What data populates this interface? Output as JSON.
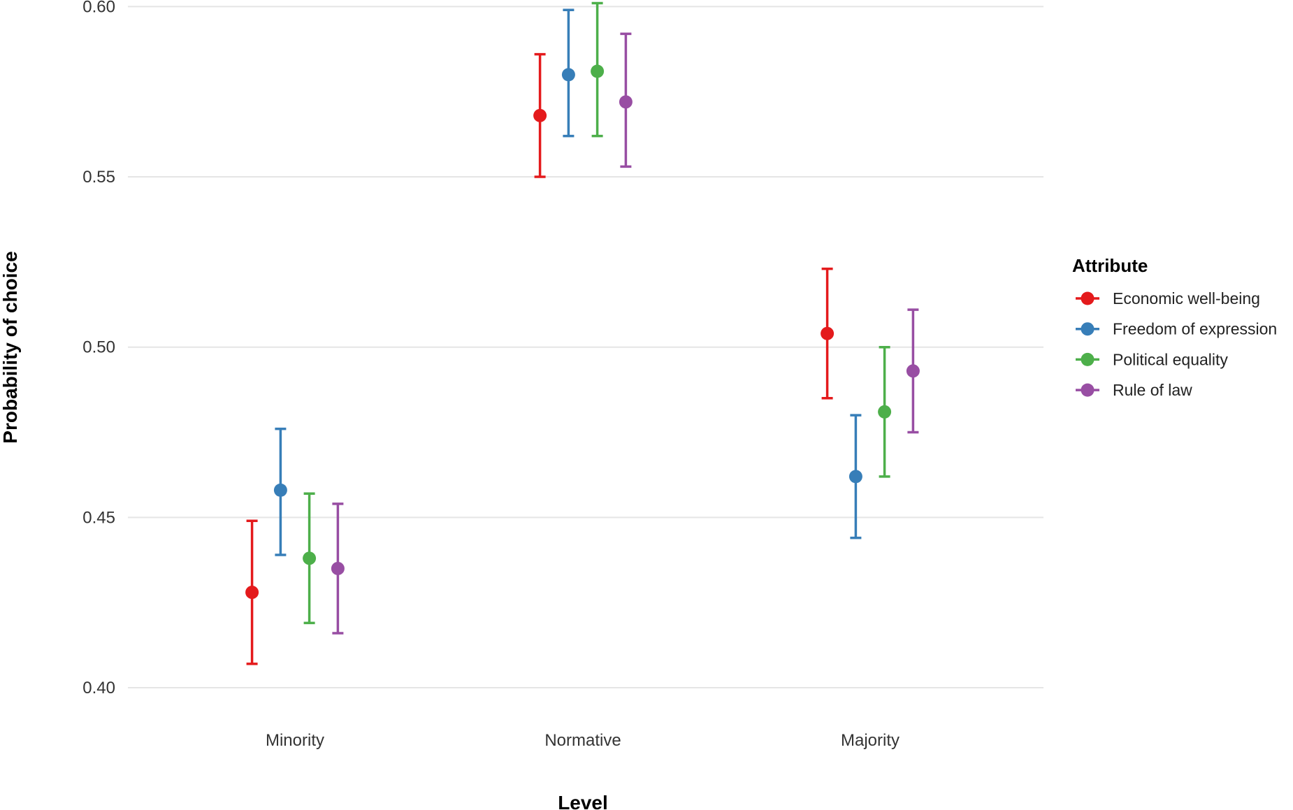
{
  "chart_data": {
    "type": "scatter",
    "subtype": "point with error bars",
    "xlabel": "Level",
    "ylabel": "Probability of choice",
    "categories": [
      "Minority",
      "Normative",
      "Majority"
    ],
    "ylim": [
      0.4,
      0.6
    ],
    "yticks": [
      0.4,
      0.45,
      0.5,
      0.55,
      0.6
    ],
    "ytick_labels": [
      "0.40",
      "0.45",
      "0.50",
      "0.55",
      "0.60"
    ],
    "grid": "horizontal major",
    "legend": {
      "title": "Attribute",
      "placement": "right"
    },
    "series": [
      {
        "name": "Economic well-being",
        "color": "#E41A1C",
        "values": [
          0.428,
          0.568,
          0.504
        ],
        "lower": [
          0.407,
          0.55,
          0.485
        ],
        "upper": [
          0.449,
          0.586,
          0.523
        ]
      },
      {
        "name": "Freedom of expression",
        "color": "#377EB8",
        "values": [
          0.458,
          0.58,
          0.462
        ],
        "lower": [
          0.439,
          0.562,
          0.444
        ],
        "upper": [
          0.476,
          0.599,
          0.48
        ]
      },
      {
        "name": "Political equality",
        "color": "#4DAF4A",
        "values": [
          0.438,
          0.581,
          0.481
        ],
        "lower": [
          0.419,
          0.562,
          0.462
        ],
        "upper": [
          0.457,
          0.601,
          0.5
        ]
      },
      {
        "name": "Rule of law",
        "color": "#984EA3",
        "values": [
          0.435,
          0.572,
          0.493
        ],
        "lower": [
          0.416,
          0.553,
          0.475
        ],
        "upper": [
          0.454,
          0.592,
          0.511
        ]
      }
    ]
  }
}
